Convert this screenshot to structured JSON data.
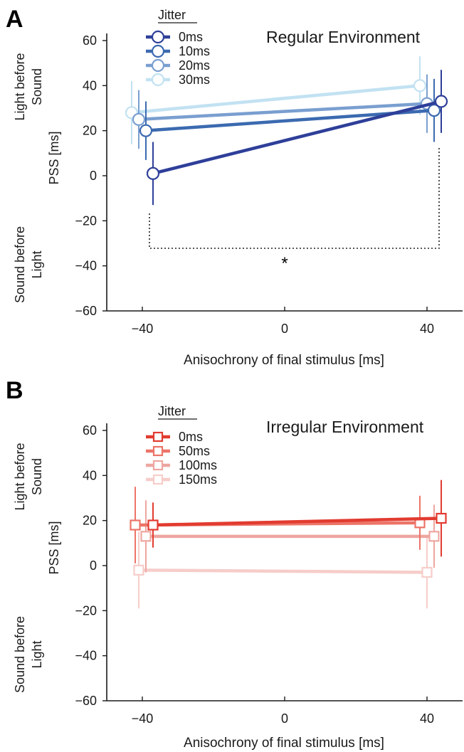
{
  "chart_data": [
    {
      "panel_letter": "A",
      "type": "line",
      "title": "Regular Environment",
      "xlabel": "Anisochrony of final stimulus [ms]",
      "ylabel": "PSS [ms]",
      "y_upper_label": [
        "Light before",
        "Sound"
      ],
      "y_lower_label": [
        "Sound before",
        "Light"
      ],
      "legend_title": "Jitter",
      "legend_position": "top-left",
      "marker": "circle",
      "xlim": [
        -50,
        50
      ],
      "ylim": [
        -60,
        60
      ],
      "x_ticks": [
        -40,
        0,
        40
      ],
      "y_ticks": [
        60,
        40,
        20,
        0,
        -20,
        -40,
        -60
      ],
      "x_tick_labels": [
        "−40",
        "0",
        "40"
      ],
      "y_tick_labels": [
        "60",
        "40",
        "20",
        "0",
        "−20",
        "−40",
        "−60"
      ],
      "grid": false,
      "series": [
        {
          "name": "0ms",
          "color": "#2e3f99",
          "x": [
            -37,
            44
          ],
          "y": [
            1,
            33
          ],
          "err": [
            14,
            14
          ]
        },
        {
          "name": "10ms",
          "color": "#3b6ab0",
          "x": [
            -39,
            42
          ],
          "y": [
            20,
            29
          ],
          "err": [
            13,
            14
          ]
        },
        {
          "name": "20ms",
          "color": "#7a9fd0",
          "x": [
            -41,
            40
          ],
          "y": [
            25,
            32
          ],
          "err": [
            13,
            13
          ]
        },
        {
          "name": "30ms",
          "color": "#c2e2f2",
          "x": [
            -43,
            38
          ],
          "y": [
            28,
            40
          ],
          "err": [
            14,
            13
          ]
        }
      ],
      "annotations": [
        {
          "text": "*"
        }
      ]
    },
    {
      "panel_letter": "B",
      "type": "line",
      "title": "Irregular Environment",
      "xlabel": "Anisochrony of final stimulus [ms]",
      "ylabel": "PSS [ms]",
      "y_upper_label": [
        "Light before",
        "Sound"
      ],
      "y_lower_label": [
        "Sound before",
        "Light"
      ],
      "legend_title": "Jitter",
      "legend_position": "top-left",
      "marker": "square",
      "xlim": [
        -50,
        50
      ],
      "ylim": [
        -60,
        60
      ],
      "x_ticks": [
        -40,
        0,
        40
      ],
      "y_ticks": [
        60,
        40,
        20,
        0,
        -20,
        -40,
        -60
      ],
      "x_tick_labels": [
        "−40",
        "0",
        "40"
      ],
      "y_tick_labels": [
        "60",
        "40",
        "20",
        "0",
        "−20",
        "−40",
        "−60"
      ],
      "grid": false,
      "series": [
        {
          "name": "0ms",
          "color": "#e23b30",
          "x": [
            -37,
            44
          ],
          "y": [
            18,
            21
          ],
          "err": [
            10,
            17
          ]
        },
        {
          "name": "50ms",
          "color": "#ec7468",
          "x": [
            -42,
            38
          ],
          "y": [
            18,
            19
          ],
          "err": [
            17,
            12
          ]
        },
        {
          "name": "100ms",
          "color": "#eea6a0",
          "x": [
            -39,
            42
          ],
          "y": [
            13,
            13
          ],
          "err": [
            16,
            14
          ]
        },
        {
          "name": "150ms",
          "color": "#f6cdc9",
          "x": [
            -41,
            40
          ],
          "y": [
            -2,
            -3
          ],
          "err": [
            17,
            16
          ]
        }
      ]
    }
  ]
}
